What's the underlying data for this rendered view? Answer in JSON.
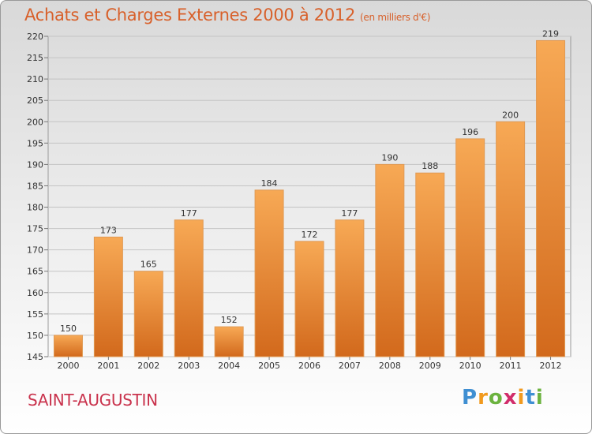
{
  "header": {
    "title": "Achats et Charges Externes 2000 à 2012",
    "subtitle": "(en milliers d'€)"
  },
  "footer": {
    "commune": "SAINT-AUGUSTIN",
    "brand": "Proxiti"
  },
  "colors": {
    "bar_light": "#f7a955",
    "bar_dark": "#d2691c",
    "title": "#d8602a",
    "commune": "#c9334d"
  },
  "chart_data": {
    "type": "bar",
    "title": "Achats et Charges Externes 2000 à 2012",
    "subtitle": "(en milliers d'€)",
    "categories": [
      "2000",
      "2001",
      "2002",
      "2003",
      "2004",
      "2005",
      "2006",
      "2007",
      "2008",
      "2009",
      "2010",
      "2011",
      "2012"
    ],
    "values": [
      150,
      173,
      165,
      177,
      152,
      184,
      172,
      177,
      190,
      188,
      196,
      200,
      219
    ],
    "ylim": [
      145,
      220
    ],
    "yticks": [
      145,
      150,
      155,
      160,
      165,
      170,
      175,
      180,
      185,
      190,
      195,
      200,
      205,
      210,
      215,
      220
    ],
    "grid": true,
    "data_labels": true
  }
}
